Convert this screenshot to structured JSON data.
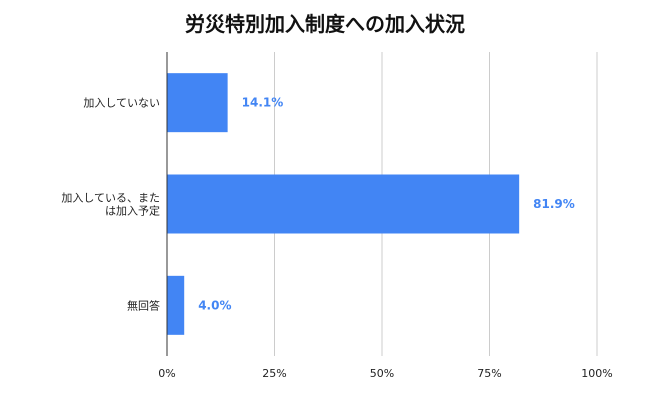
{
  "chart_data": {
    "type": "bar",
    "orientation": "horizontal",
    "title": "労災特別加入制度への加入状況",
    "categories": [
      [
        "加入していない"
      ],
      [
        "加入している、また",
        "は加入予定"
      ],
      [
        "無回答"
      ]
    ],
    "values": [
      14.1,
      81.9,
      4.0
    ],
    "value_labels": [
      "14.1%",
      "81.9%",
      "4.0%"
    ],
    "xlim": [
      0,
      100
    ],
    "x_ticks": [
      0,
      25,
      50,
      75,
      100
    ],
    "x_tick_labels": [
      "0%",
      "25%",
      "50%",
      "75%",
      "100%"
    ],
    "grid": true,
    "legend": "none",
    "bar_color": "#4285f4",
    "value_label_color": "#4285f4"
  }
}
